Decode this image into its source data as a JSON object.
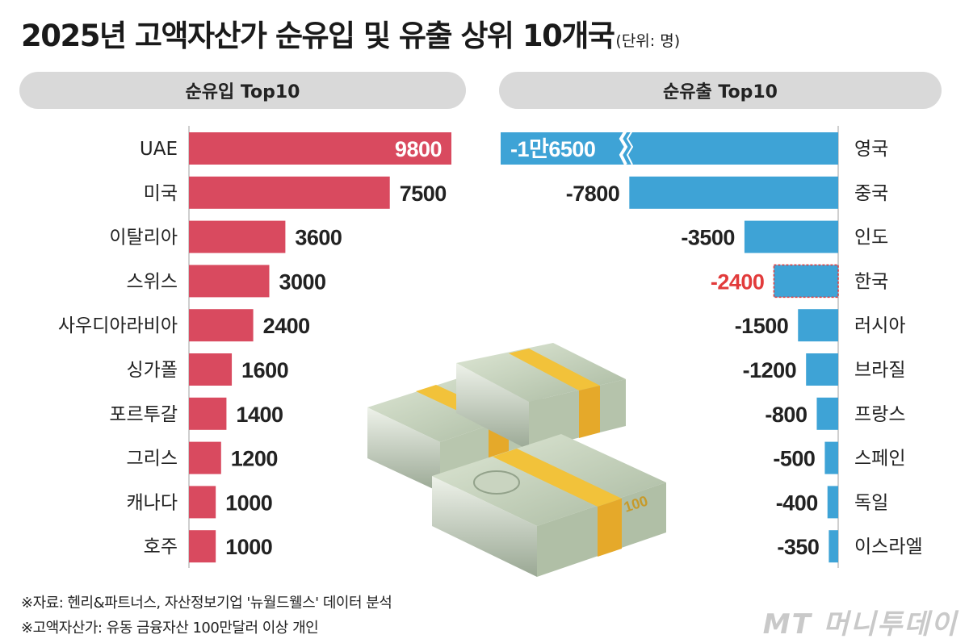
{
  "title": {
    "main": "2025년 고액자산가 순유입 및 유출 상위 10개국",
    "unit": "(단위: 명)"
  },
  "colors": {
    "inflow": "#d94a5f",
    "outflow": "#3ea3d6",
    "highlight": "#e23b3b",
    "pill": "#d9d9d9"
  },
  "chart_data": [
    {
      "type": "bar",
      "orientation": "horizontal",
      "title": "순유입 Top10",
      "categories": [
        "UAE",
        "미국",
        "이탈리아",
        "스위스",
        "사우디아라비아",
        "싱가폴",
        "포르투갈",
        "그리스",
        "캐나다",
        "호주"
      ],
      "values": [
        9800,
        7500,
        3600,
        3000,
        2400,
        1600,
        1400,
        1200,
        1000,
        1000
      ],
      "labels": [
        "9800",
        "7500",
        "3600",
        "3000",
        "2400",
        "1600",
        "1400",
        "1200",
        "1000",
        "1000"
      ]
    },
    {
      "type": "bar",
      "orientation": "horizontal",
      "title": "순유출 Top10",
      "categories": [
        "영국",
        "중국",
        "인도",
        "한국",
        "러시아",
        "브라질",
        "프랑스",
        "스페인",
        "독일",
        "이스라엘"
      ],
      "values": [
        -16500,
        -7800,
        -3500,
        -2400,
        -1500,
        -1200,
        -800,
        -500,
        -400,
        -350
      ],
      "labels": [
        "-1만6500",
        "-7800",
        "-3500",
        "-2400",
        "-1500",
        "-1200",
        "-800",
        "-500",
        "-400",
        "-350"
      ],
      "axis_break_on": "영국",
      "highlight": "한국"
    }
  ],
  "notes": [
    "※자료: 헨리&파트너스, 자산정보기업 '뉴월드웰스' 데이터 분석",
    "※고액자산가: 유동 금융자산 100만달러 이상 개인"
  ],
  "logo": "MT 머니투데이"
}
